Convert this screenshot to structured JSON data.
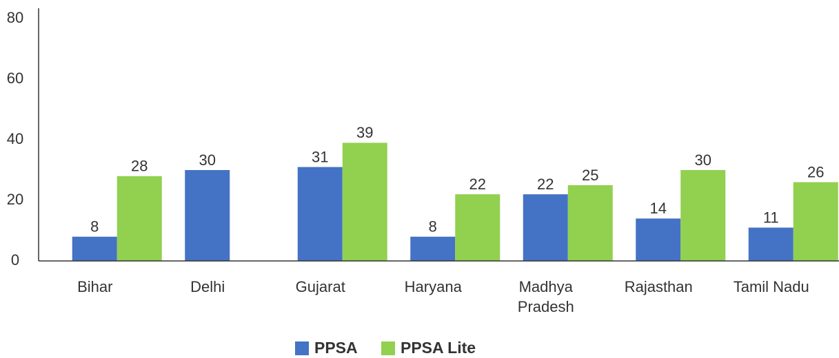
{
  "chart_data": {
    "type": "bar",
    "categories": [
      "Bihar",
      "Delhi",
      "Gujarat",
      "Haryana",
      "Madhya Pradesh",
      "Rajasthan",
      "Tamil Nadu"
    ],
    "series": [
      {
        "name": "PPSA",
        "color": "#4472c4",
        "values": [
          8,
          30,
          31,
          8,
          22,
          14,
          11
        ]
      },
      {
        "name": "PPSA Lite",
        "color": "#92d050",
        "values": [
          28,
          null,
          39,
          22,
          25,
          30,
          26
        ]
      }
    ],
    "ylim": [
      0,
      80
    ],
    "yticks": [
      0,
      20,
      40,
      60,
      80
    ],
    "grid": false,
    "legend": "bottom"
  }
}
